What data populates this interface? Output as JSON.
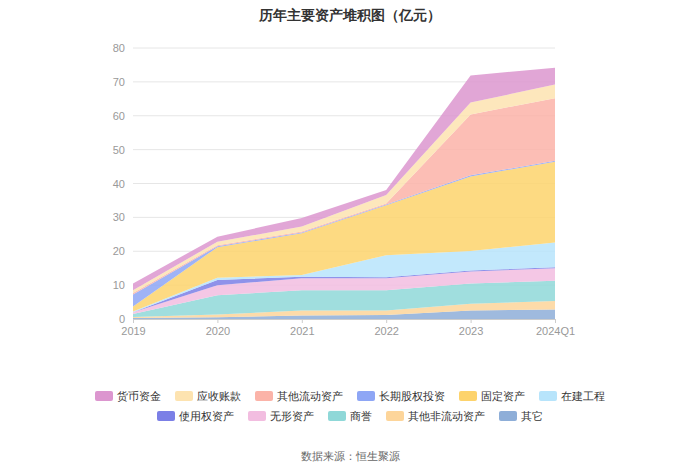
{
  "chart_data": {
    "type": "area",
    "stacked": true,
    "grid": true,
    "title": "历年主要资产堆积图（亿元）",
    "source": "数据来源：恒生聚源",
    "categories": [
      "2019",
      "2020",
      "2021",
      "2022",
      "2023",
      "2024Q1"
    ],
    "ylim": [
      0,
      80
    ],
    "yticks": [
      0,
      10,
      20,
      30,
      40,
      50,
      60,
      70,
      80
    ],
    "legend": "bottom",
    "series": [
      {
        "name": "货币资金",
        "color": "#dc96cf",
        "values": [
          2.0,
          1.5,
          2.5,
          1.5,
          8.0,
          5.0
        ]
      },
      {
        "name": "应收账款",
        "color": "#fde3b0",
        "values": [
          0.8,
          1.0,
          1.5,
          2.5,
          3.5,
          4.0
        ]
      },
      {
        "name": "其他流动资产",
        "color": "#fbb3a8",
        "values": [
          0.5,
          0.3,
          0.3,
          0.3,
          18.0,
          18.5
        ]
      },
      {
        "name": "长期股权投资",
        "color": "#8ea6f5",
        "values": [
          3.5,
          0.3,
          0.2,
          0.2,
          0.3,
          0.3
        ]
      },
      {
        "name": "固定资产",
        "color": "#fdd36c",
        "values": [
          1.5,
          9.0,
          12.3,
          14.8,
          22.0,
          23.8
        ]
      },
      {
        "name": "在建工程",
        "color": "#b7e4fb",
        "values": [
          0.2,
          0.7,
          0.5,
          6.5,
          5.8,
          7.3
        ]
      },
      {
        "name": "使用权资产",
        "color": "#7b7fe6",
        "values": [
          0.0,
          1.5,
          0.5,
          0.3,
          0.3,
          0.3
        ]
      },
      {
        "name": "无形资产",
        "color": "#f2bde0",
        "values": [
          0.5,
          3.0,
          3.5,
          3.5,
          3.5,
          3.7
        ]
      },
      {
        "name": "商誉",
        "color": "#8fd8d8",
        "values": [
          0.9,
          5.7,
          6.0,
          6.0,
          6.0,
          6.0
        ]
      },
      {
        "name": "其他非流动资产",
        "color": "#fdd59a",
        "values": [
          0.3,
          0.8,
          1.5,
          1.3,
          2.0,
          2.5
        ]
      },
      {
        "name": "其它",
        "color": "#8eaed8",
        "values": [
          0.3,
          0.5,
          1.0,
          1.2,
          2.5,
          2.8
        ]
      }
    ]
  }
}
